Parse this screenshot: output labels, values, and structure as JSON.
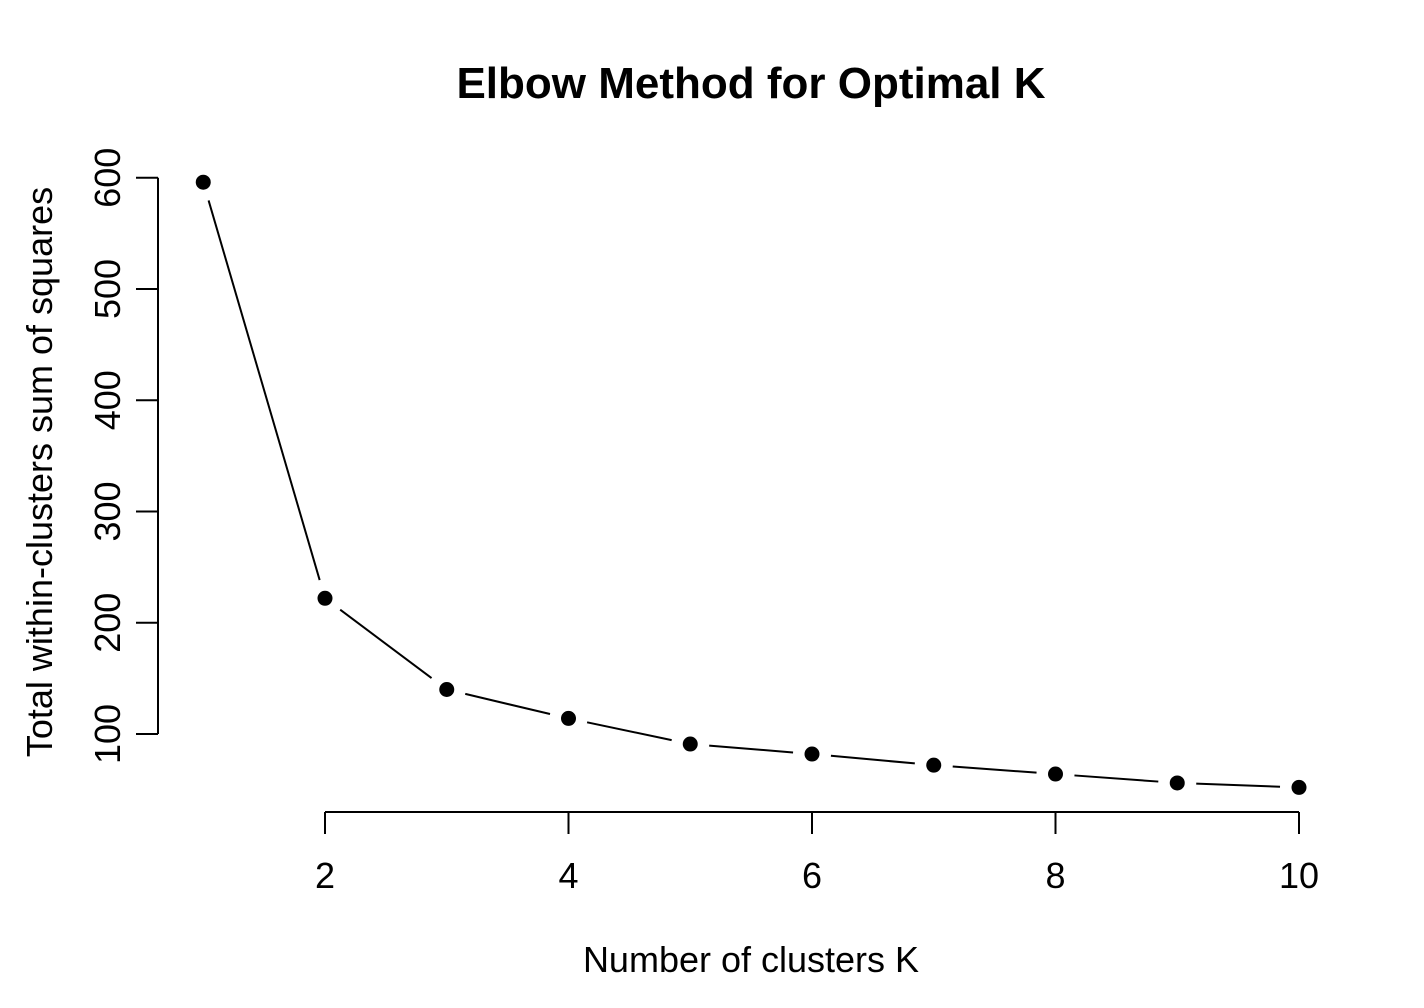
{
  "chart_data": {
    "type": "line",
    "title": "Elbow Method for Optimal K",
    "xlabel": "Number of clusters K",
    "ylabel": "Total within-clusters sum of squares",
    "x": [
      1,
      2,
      3,
      4,
      5,
      6,
      7,
      8,
      9,
      10
    ],
    "values": [
      596,
      222,
      140,
      114,
      91,
      82,
      72,
      64,
      56,
      52
    ],
    "series_name": "Total within-clusters sum of squares",
    "x_ticks": [
      2,
      4,
      6,
      8,
      10
    ],
    "y_ticks": [
      100,
      200,
      300,
      400,
      500,
      600
    ],
    "xlim": [
      0.6,
      10.4
    ],
    "ylim": [
      30,
      618
    ],
    "marker": "filled-circle",
    "line_style": "segments-with-point-gaps",
    "grid": false,
    "legend": "none",
    "colors": {
      "foreground": "#000000",
      "background": "#ffffff"
    }
  }
}
